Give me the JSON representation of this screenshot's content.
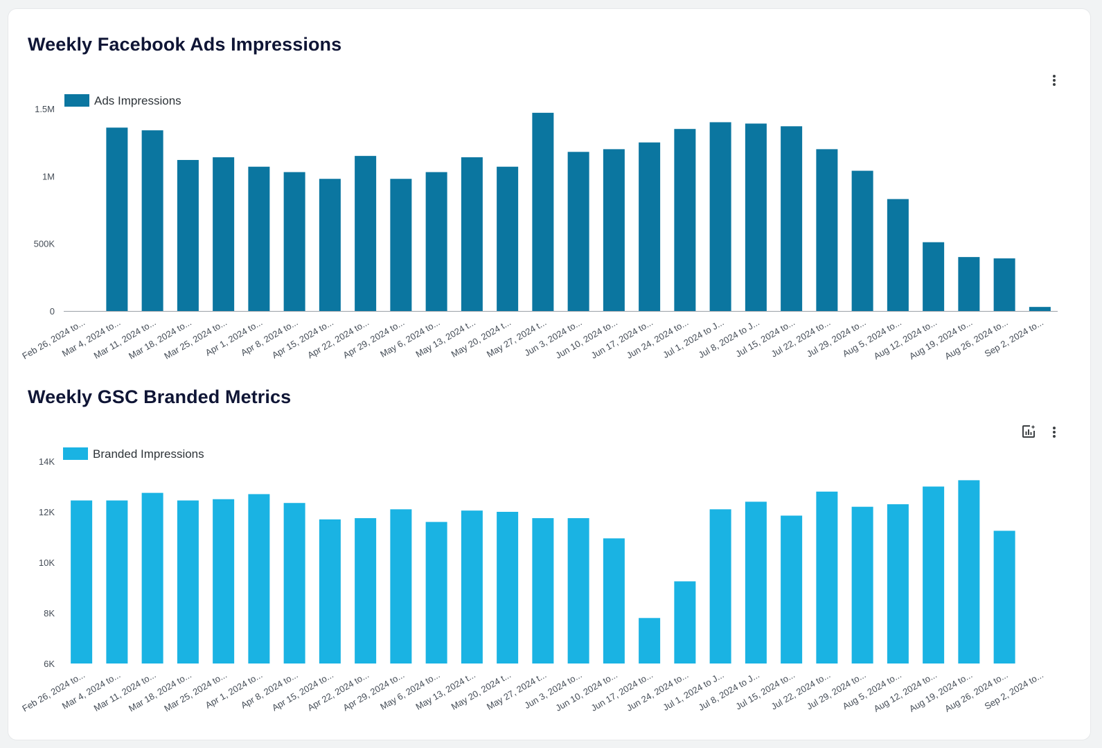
{
  "colors": {
    "ads_bar": "#0b76a0",
    "branded_bar": "#1ab3e3",
    "title": "#0f1535",
    "axis": "#9aa0a6"
  },
  "charts": {
    "ads": {
      "title": "Weekly Facebook Ads Impressions",
      "menu_icon": "more-vert-icon"
    },
    "gsc": {
      "title": "Weekly GSC Branded Metrics",
      "insights_icon": "chart-insights-icon",
      "menu_icon": "more-vert-icon"
    }
  },
  "chart_data": [
    {
      "type": "bar",
      "title": "Weekly Facebook Ads Impressions",
      "xlabel": "",
      "ylabel": "",
      "ylim": [
        0,
        1500000
      ],
      "yticks": [
        0,
        500000,
        1000000,
        1500000
      ],
      "ytick_labels": [
        "0",
        "500K",
        "1M",
        "1.5M"
      ],
      "grid": false,
      "legend_position": "top-left",
      "categories": [
        "Feb 26, 2024 to...",
        "Mar 4, 2024 to...",
        "Mar 11, 2024 to...",
        "Mar 18, 2024 to...",
        "Mar 25, 2024 to...",
        "Apr 1, 2024 to...",
        "Apr 8, 2024 to...",
        "Apr 15, 2024 to...",
        "Apr 22, 2024 to...",
        "Apr 29, 2024 to...",
        "May 6, 2024 to...",
        "May 13, 2024 t...",
        "May 20, 2024 t...",
        "May 27, 2024 t...",
        "Jun 3, 2024 to...",
        "Jun 10, 2024 to...",
        "Jun 17, 2024 to...",
        "Jun 24, 2024 to...",
        "Jul 1, 2024 to J...",
        "Jul 8, 2024 to J...",
        "Jul 15, 2024 to...",
        "Jul 22, 2024 to...",
        "Jul 29, 2024 to...",
        "Aug 5, 2024 to...",
        "Aug 12, 2024 to...",
        "Aug 19, 2024 to...",
        "Aug 26, 2024 to...",
        "Sep 2, 2024 to..."
      ],
      "series": [
        {
          "name": "Ads Impressions",
          "color": "#0b76a0",
          "values": [
            0,
            1360000,
            1340000,
            1120000,
            1140000,
            1070000,
            1030000,
            980000,
            1150000,
            980000,
            1030000,
            1140000,
            1070000,
            1470000,
            1180000,
            1200000,
            1250000,
            1350000,
            1400000,
            1390000,
            1370000,
            1200000,
            1040000,
            830000,
            510000,
            400000,
            390000,
            30000
          ]
        }
      ]
    },
    {
      "type": "bar",
      "title": "Weekly GSC Branded Metrics",
      "xlabel": "",
      "ylabel": "",
      "ylim": [
        6000,
        14000
      ],
      "yticks": [
        6000,
        8000,
        10000,
        12000,
        14000
      ],
      "ytick_labels": [
        "6K",
        "8K",
        "10K",
        "12K",
        "14K"
      ],
      "grid": false,
      "legend_position": "top-left",
      "categories": [
        "Feb 26, 2024 to...",
        "Mar 4, 2024 to...",
        "Mar 11, 2024 to...",
        "Mar 18, 2024 to...",
        "Mar 25, 2024 to...",
        "Apr 1, 2024 to...",
        "Apr 8, 2024 to...",
        "Apr 15, 2024 to...",
        "Apr 22, 2024 to...",
        "Apr 29, 2024 to...",
        "May 6, 2024 to...",
        "May 13, 2024 t...",
        "May 20, 2024 t...",
        "May 27, 2024 t...",
        "Jun 3, 2024 to...",
        "Jun 10, 2024 to...",
        "Jun 17, 2024 to...",
        "Jun 24, 2024 to...",
        "Jul 1, 2024 to J...",
        "Jul 8, 2024 to J...",
        "Jul 15, 2024 to...",
        "Jul 22, 2024 to...",
        "Jul 29, 2024 to...",
        "Aug 5, 2024 to...",
        "Aug 12, 2024 to...",
        "Aug 19, 2024 to...",
        "Aug 26, 2024 to...",
        "Sep 2, 2024 to..."
      ],
      "series": [
        {
          "name": "Branded Impressions",
          "color": "#1ab3e3",
          "values": [
            12450,
            12450,
            12750,
            12450,
            12500,
            12700,
            12350,
            11700,
            11750,
            12100,
            11600,
            12050,
            12000,
            11750,
            11750,
            10950,
            7800,
            9250,
            12100,
            12400,
            11850,
            12800,
            12200,
            12300,
            13000,
            13250,
            11250,
            null
          ]
        }
      ]
    }
  ]
}
